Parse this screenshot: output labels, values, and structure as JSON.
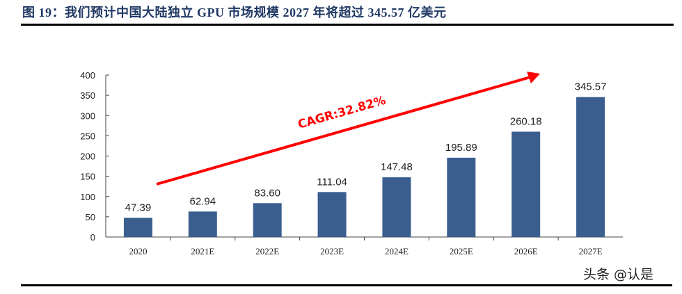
{
  "title": "图 19：我们预计中国大陆独立 GPU 市场规模 2027 年将超过 345.57 亿美元",
  "watermark": "头条 @认是",
  "chart_data": {
    "type": "bar",
    "title": "",
    "xlabel": "",
    "ylabel": "",
    "categories": [
      "2020",
      "2021E",
      "2022E",
      "2023E",
      "2024E",
      "2025E",
      "2026E",
      "2027E"
    ],
    "values": [
      47.39,
      62.94,
      83.6,
      111.04,
      147.48,
      195.89,
      260.18,
      345.57
    ],
    "data_labels": [
      "47.39",
      "62.94",
      "83.60",
      "111.04",
      "147.48",
      "195.89",
      "260.18",
      "345.57"
    ],
    "ylim": [
      0,
      400
    ],
    "yticks": [
      0,
      50,
      100,
      150,
      200,
      250,
      300,
      350,
      400
    ],
    "grid": false,
    "bar_color": "#3a5f8f",
    "annotation": {
      "text": "CAGR:32.82%",
      "color": "#ff0000",
      "type": "arrow-up-right"
    }
  }
}
